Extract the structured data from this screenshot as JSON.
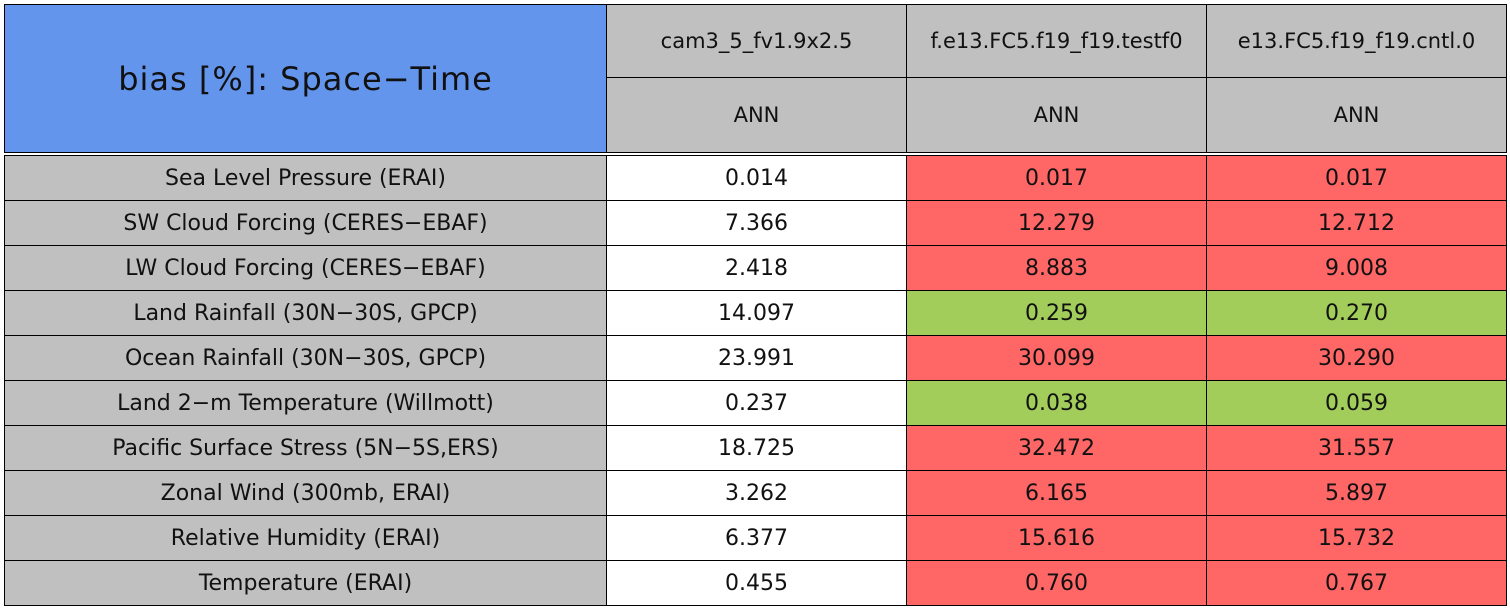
{
  "table": {
    "title": "bias [%]: Space−Time",
    "columns": [
      "cam3_5_fv1.9x2.5",
      "f.e13.FC5.f19_f19.testf0",
      "e13.FC5.f19_f19.cntl.0"
    ],
    "seasons": [
      "ANN",
      "ANN",
      "ANN"
    ],
    "rows": [
      {
        "label": "Sea Level Pressure (ERAI)",
        "values": [
          "0.014",
          "0.017",
          "0.017"
        ],
        "colors": [
          "#ffffff",
          "#ff6666",
          "#ff6666"
        ]
      },
      {
        "label": "SW Cloud Forcing (CERES−EBAF)",
        "values": [
          "7.366",
          "12.279",
          "12.712"
        ],
        "colors": [
          "#ffffff",
          "#ff6666",
          "#ff6666"
        ]
      },
      {
        "label": "LW Cloud Forcing (CERES−EBAF)",
        "values": [
          "2.418",
          "8.883",
          "9.008"
        ],
        "colors": [
          "#ffffff",
          "#ff6666",
          "#ff6666"
        ]
      },
      {
        "label": "Land Rainfall (30N−30S, GPCP)",
        "values": [
          "14.097",
          "0.259",
          "0.270"
        ],
        "colors": [
          "#ffffff",
          "#a2cd5a",
          "#a2cd5a"
        ]
      },
      {
        "label": "Ocean Rainfall (30N−30S, GPCP)",
        "values": [
          "23.991",
          "30.099",
          "30.290"
        ],
        "colors": [
          "#ffffff",
          "#ff6666",
          "#ff6666"
        ]
      },
      {
        "label": "Land 2−m Temperature (Willmott)",
        "values": [
          "0.237",
          "0.038",
          "0.059"
        ],
        "colors": [
          "#ffffff",
          "#a2cd5a",
          "#a2cd5a"
        ]
      },
      {
        "label": "Pacific Surface Stress (5N−5S,ERS)",
        "values": [
          "18.725",
          "32.472",
          "31.557"
        ],
        "colors": [
          "#ffffff",
          "#ff6666",
          "#ff6666"
        ]
      },
      {
        "label": "Zonal Wind (300mb, ERAI)",
        "values": [
          "3.262",
          "6.165",
          "5.897"
        ],
        "colors": [
          "#ffffff",
          "#ff6666",
          "#ff6666"
        ]
      },
      {
        "label": "Relative Humidity (ERAI)",
        "values": [
          "6.377",
          "15.616",
          "15.732"
        ],
        "colors": [
          "#ffffff",
          "#ff6666",
          "#ff6666"
        ]
      },
      {
        "label": "Temperature (ERAI)",
        "values": [
          "0.455",
          "0.760",
          "0.767"
        ],
        "colors": [
          "#ffffff",
          "#ff6666",
          "#ff6666"
        ]
      }
    ]
  }
}
